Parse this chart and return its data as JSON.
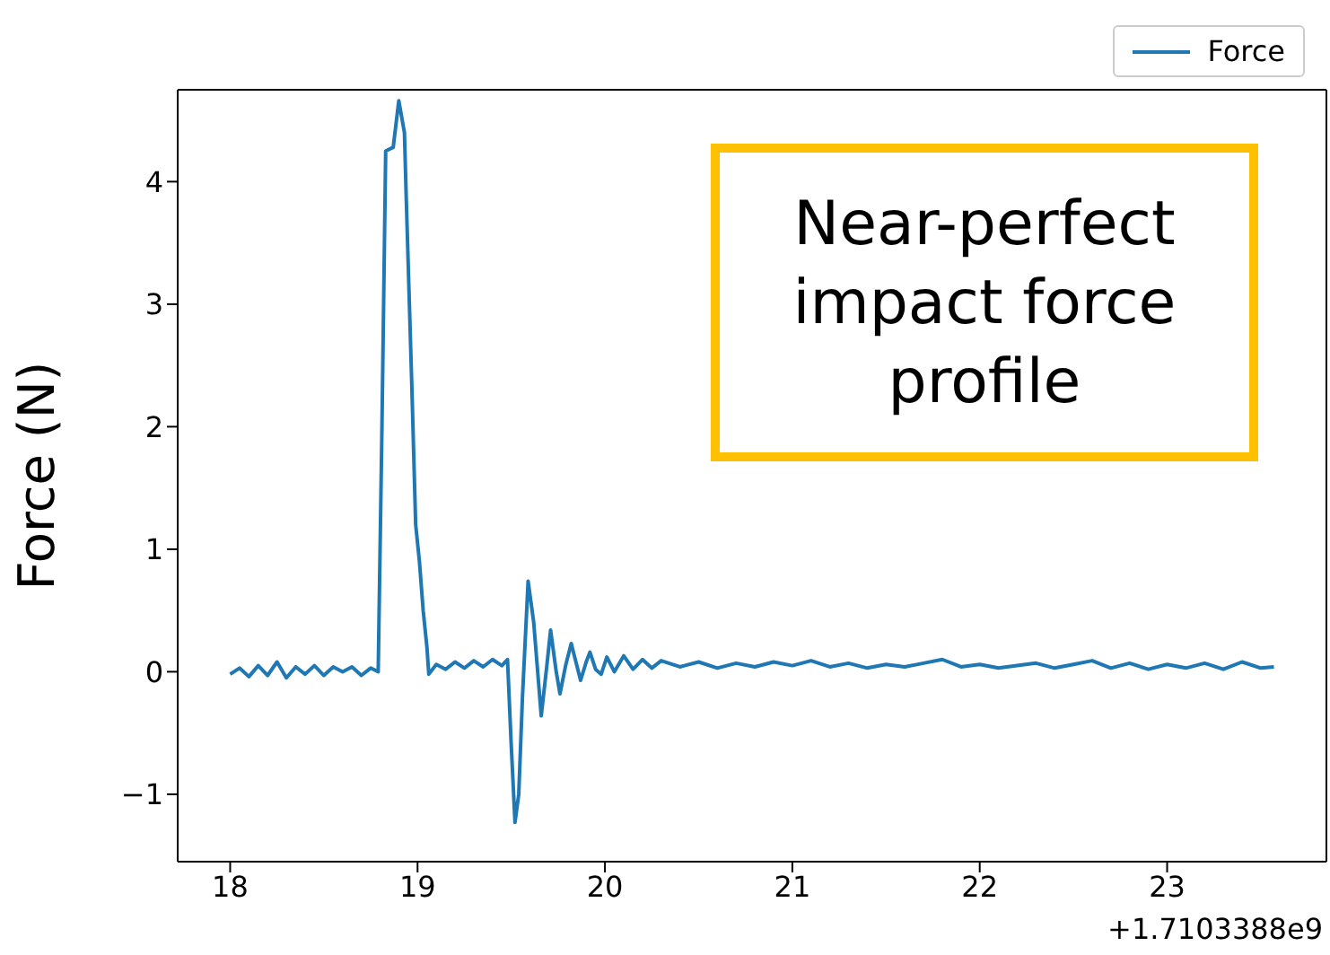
{
  "chart_data": {
    "type": "line",
    "ylabel": "Force (N)",
    "annotations": [
      "Near-perfect impact force profile",
      "+1.7103388e9"
    ],
    "x": [
      18.0,
      18.05,
      18.1,
      18.15,
      18.2,
      18.25,
      18.3,
      18.35,
      18.4,
      18.45,
      18.5,
      18.55,
      18.6,
      18.65,
      18.7,
      18.75,
      18.79,
      18.81,
      18.83,
      18.87,
      18.9,
      18.93,
      18.94,
      18.97,
      18.99,
      19.01,
      19.03,
      19.05,
      19.06,
      19.1,
      19.15,
      19.2,
      19.25,
      19.3,
      19.35,
      19.4,
      19.45,
      19.48,
      19.5,
      19.52,
      19.54,
      19.56,
      19.59,
      19.62,
      19.66,
      19.69,
      19.71,
      19.74,
      19.76,
      19.79,
      19.82,
      19.85,
      19.87,
      19.9,
      19.92,
      19.95,
      19.98,
      20.01,
      20.05,
      20.1,
      20.15,
      20.2,
      20.25,
      20.3,
      20.4,
      20.5,
      20.6,
      20.7,
      20.8,
      20.9,
      21.0,
      21.1,
      21.2,
      21.3,
      21.4,
      21.5,
      21.6,
      21.7,
      21.8,
      21.9,
      22.0,
      22.1,
      22.2,
      22.3,
      22.4,
      22.5,
      22.6,
      22.7,
      22.8,
      22.9,
      23.0,
      23.1,
      23.2,
      23.3,
      23.4,
      23.5,
      23.57
    ],
    "series": [
      {
        "name": "Force",
        "color": "#1f77b4",
        "values": [
          -0.02,
          0.03,
          -0.04,
          0.05,
          -0.03,
          0.08,
          -0.05,
          0.04,
          -0.02,
          0.05,
          -0.03,
          0.04,
          0.0,
          0.04,
          -0.03,
          0.03,
          0.0,
          2.0,
          4.25,
          4.28,
          4.66,
          4.4,
          3.85,
          2.3,
          1.2,
          0.9,
          0.5,
          0.2,
          -0.02,
          0.06,
          0.02,
          0.08,
          0.03,
          0.09,
          0.04,
          0.1,
          0.05,
          0.1,
          -0.6,
          -1.23,
          -1.0,
          -0.2,
          0.74,
          0.4,
          -0.36,
          0.05,
          0.34,
          0.0,
          -0.18,
          0.05,
          0.23,
          0.05,
          -0.07,
          0.08,
          0.16,
          0.02,
          -0.02,
          0.12,
          0.0,
          0.13,
          0.02,
          0.1,
          0.03,
          0.09,
          0.04,
          0.08,
          0.03,
          0.07,
          0.04,
          0.08,
          0.05,
          0.09,
          0.04,
          0.07,
          0.03,
          0.06,
          0.04,
          0.07,
          0.1,
          0.04,
          0.06,
          0.03,
          0.05,
          0.07,
          0.03,
          0.06,
          0.09,
          0.03,
          0.07,
          0.02,
          0.06,
          0.03,
          0.07,
          0.02,
          0.08,
          0.03,
          0.04
        ]
      }
    ],
    "xlim": [
      17.72,
      23.85
    ],
    "ylim": [
      -1.55,
      4.75
    ],
    "xticks": [
      18,
      19,
      20,
      21,
      22,
      23
    ],
    "yticks": [
      -1,
      0,
      1,
      2,
      3,
      4
    ],
    "grid": false,
    "legend": "top right",
    "marker": "none",
    "line_style": "solid"
  }
}
